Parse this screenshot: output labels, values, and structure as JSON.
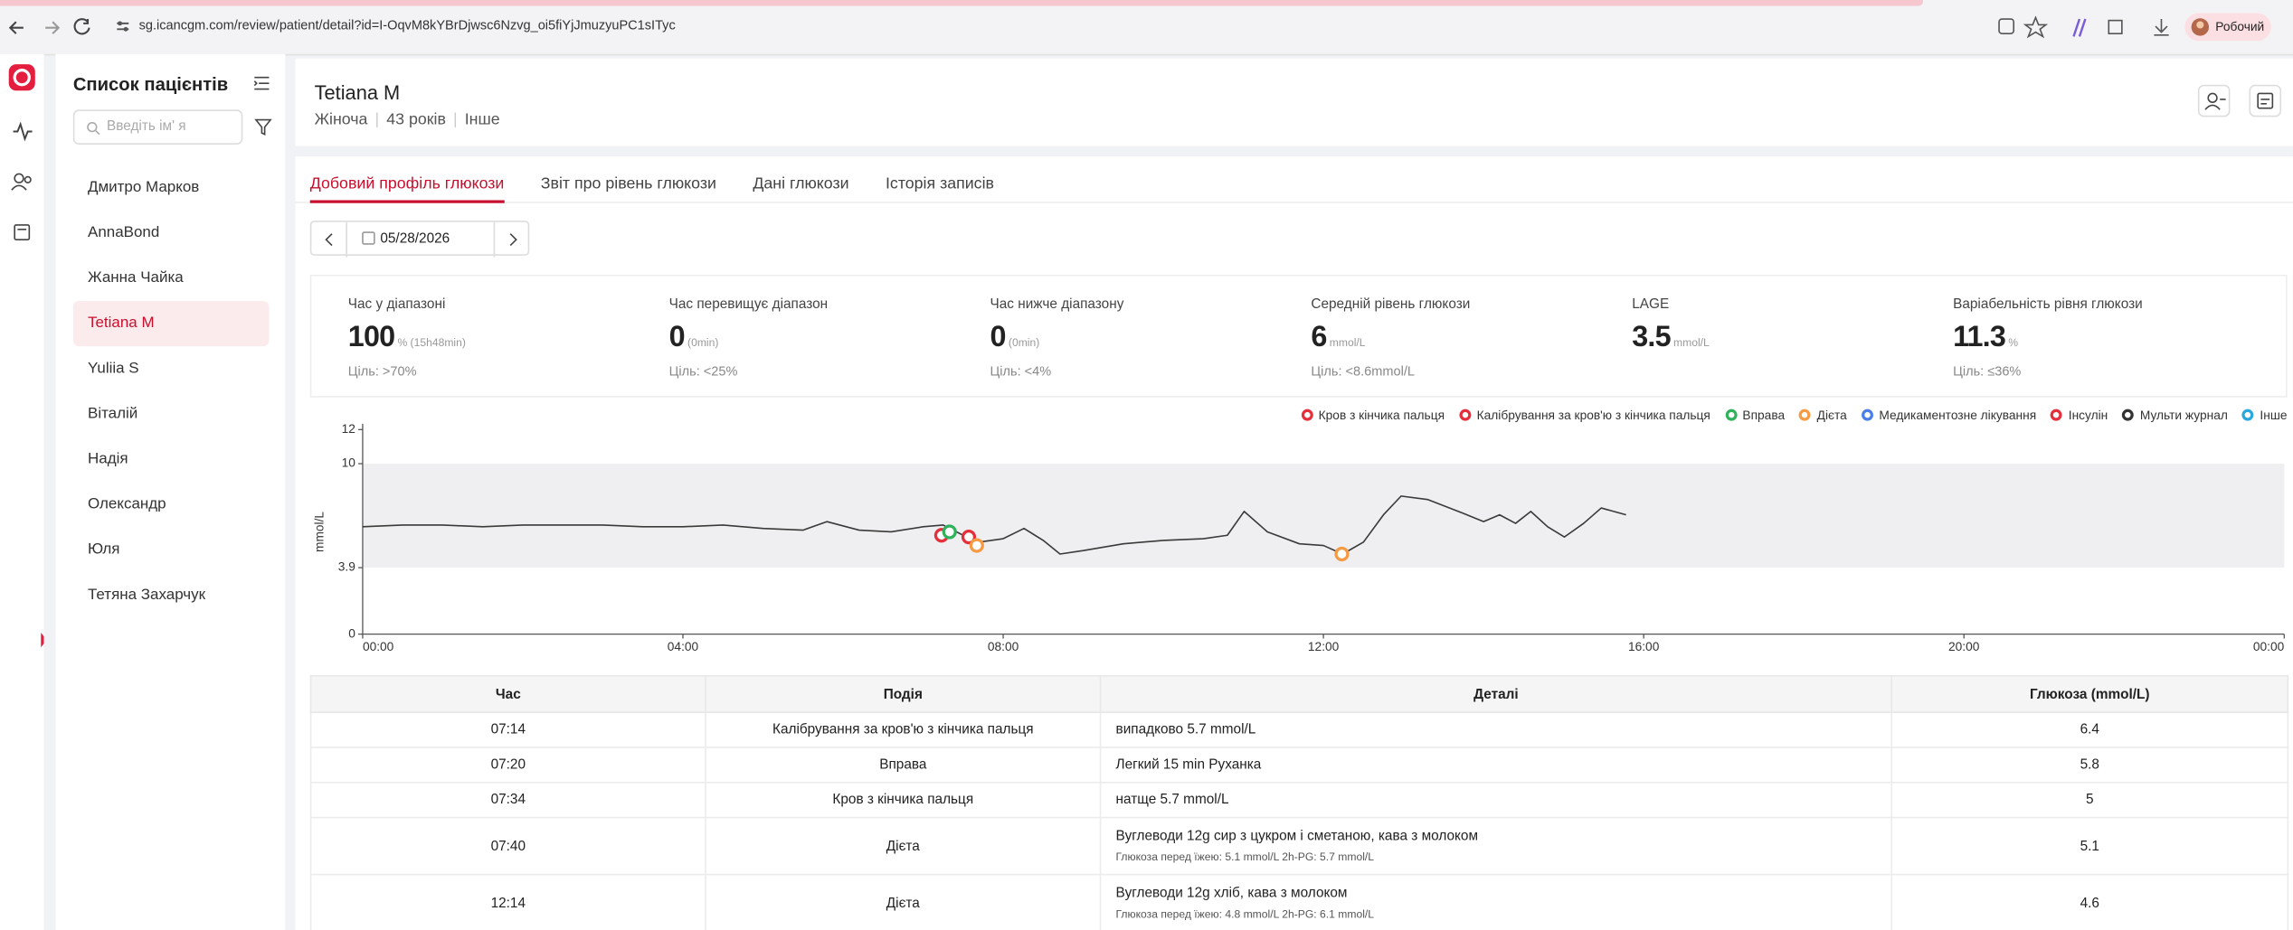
{
  "browser": {
    "url": "sg.icancgm.com/review/patient/detail?id=I-OqvM8kYBrDjwsc6Nzvg_oi5fiYjJmuzyuPC1sITyc",
    "profile": "Робочий"
  },
  "sidebar": {
    "title": "Список пацієнтів",
    "search_placeholder": "Введіть ім' я",
    "patients": [
      "Дмитро Марков",
      "AnnaBond",
      "Жанна Чайка",
      "Tetiana M",
      "Yuliia S",
      "Віталій",
      "Надія",
      "Олександр",
      "Юля",
      "Тетяна Захарчук"
    ],
    "selected": 3
  },
  "patient": {
    "name": "Tetiana M",
    "gender": "Жіноча",
    "age": "43 років",
    "other": "Інше"
  },
  "tabs": [
    "Добовий профіль глюкози",
    "Звіт про рівень глюкози",
    "Дані глюкози",
    "Історія записів"
  ],
  "active_tab": 0,
  "date": "05/28/2026",
  "stats": [
    {
      "label": "Час у діапазоні",
      "value": "100",
      "unit": "%",
      "extra": "(15h48min)",
      "target": "Ціль: >70%"
    },
    {
      "label": "Час перевищує діапазон",
      "value": "0",
      "extra": "(0min)",
      "target": "Ціль: <25%"
    },
    {
      "label": "Час нижче діапазону",
      "value": "0",
      "extra": "(0min)",
      "target": "Ціль: <4%"
    },
    {
      "label": "Середній рівень глюкози",
      "value": "6",
      "unit": "mmol/L",
      "target": "Ціль: <8.6mmol/L"
    },
    {
      "label": "LAGE",
      "value": "3.5",
      "unit": "mmol/L"
    },
    {
      "label": "Варіабельність рівня глюкози",
      "value": "11.3",
      "unit": "%",
      "target": "Ціль: ≤36%"
    }
  ],
  "legend": [
    {
      "label": "Кров з кінчика пальця",
      "color": "#e5303c"
    },
    {
      "label": "Калібрування за кров'ю з кінчика пальця",
      "color": "#e5303c"
    },
    {
      "label": "Вправа",
      "color": "#2fb25b"
    },
    {
      "label": "Дієта",
      "color": "#f59a45"
    },
    {
      "label": "Медикаментозне лікування",
      "color": "#4a7ee8"
    },
    {
      "label": "Інсулін",
      "color": "#e5303c"
    },
    {
      "label": "Мульти журнал",
      "color": "#333333"
    },
    {
      "label": "Інше",
      "color": "#29a8e0"
    }
  ],
  "glucose_chart": {
    "y_label": "mmol/L",
    "ylim": [
      0,
      12
    ],
    "yticks": [
      0,
      3.9,
      10,
      12
    ],
    "xlim": [
      0,
      24
    ],
    "xticks": [
      {
        "value": 0,
        "label": "00:00"
      },
      {
        "value": 4,
        "label": "04:00"
      },
      {
        "value": 8,
        "label": "08:00"
      },
      {
        "value": 12,
        "label": "12:00"
      },
      {
        "value": 16,
        "label": "16:00"
      },
      {
        "value": 20,
        "label": "20:00"
      },
      {
        "value": 24,
        "label": "00:00"
      }
    ],
    "target_range": [
      3.9,
      10
    ],
    "line_color": "#3a3a3a",
    "band_color": "#efeff1",
    "x": [
      0,
      0.5,
      1,
      1.5,
      2,
      2.5,
      3,
      3.5,
      4,
      4.5,
      5,
      5.5,
      5.8,
      6.2,
      6.6,
      7.0,
      7.25,
      7.5,
      7.7,
      8.0,
      8.26,
      8.5,
      8.71,
      9.0,
      9.5,
      10.0,
      10.5,
      10.8,
      11.01,
      11.3,
      11.7,
      12.0,
      12.24,
      12.5,
      12.75,
      12.97,
      13.3,
      13.74,
      14.0,
      14.2,
      14.4,
      14.59,
      14.8,
      15.01,
      15.25,
      15.47,
      15.78
    ],
    "values": [
      6.3,
      6.4,
      6.4,
      6.3,
      6.4,
      6.4,
      6.4,
      6.3,
      6.3,
      6.4,
      6.2,
      6.1,
      6.6,
      6.1,
      6.0,
      6.3,
      6.4,
      5.8,
      5.4,
      5.6,
      6.2,
      5.5,
      4.7,
      4.9,
      5.3,
      5.5,
      5.6,
      5.8,
      7.2,
      6.0,
      5.3,
      5.2,
      4.7,
      5.4,
      7.0,
      8.1,
      7.9,
      7.1,
      6.6,
      7.0,
      6.5,
      7.2,
      6.3,
      5.7,
      6.5,
      7.4,
      7.0
    ],
    "events": [
      {
        "x": 7.23,
        "y": 5.8,
        "color": "#e5303c"
      },
      {
        "x": 7.33,
        "y": 6.0,
        "color": "#2fb25b"
      },
      {
        "x": 7.57,
        "y": 5.7,
        "color": "#e5303c"
      },
      {
        "x": 7.67,
        "y": 5.2,
        "color": "#f59a45"
      },
      {
        "x": 12.23,
        "y": 4.7,
        "color": "#f59a45"
      }
    ]
  },
  "table": {
    "headers": [
      "Час",
      "Подія",
      "Деталі",
      "Глюкоза (mmol/L)"
    ],
    "rows": [
      {
        "time": "07:14",
        "event": "Калібрування за кров'ю з кінчика пальця",
        "details": [
          "випадково 5.7 mmol/L"
        ],
        "glucose": "6.4"
      },
      {
        "time": "07:20",
        "event": "Вправа",
        "details": [
          "Легкий 15 min Руханка"
        ],
        "glucose": "5.8"
      },
      {
        "time": "07:34",
        "event": "Кров з кінчика пальця",
        "details": [
          "натще 5.7 mmol/L"
        ],
        "glucose": "5"
      },
      {
        "time": "07:40",
        "event": "Дієта",
        "details": [
          "Вуглеводи 12g сир з цукром і сметаною, кава з молоком",
          "Глюкоза перед їжею: 5.1 mmol/L    2h-PG: 5.7 mmol/L"
        ],
        "glucose": "5.1"
      },
      {
        "time": "12:14",
        "event": "Дієта",
        "details": [
          "Вуглеводи 12g хліб, кава з молоком",
          "Глюкоза перед їжею: 4.8 mmol/L    2h-PG: 6.1 mmol/L"
        ],
        "glucose": "4.6"
      }
    ]
  }
}
